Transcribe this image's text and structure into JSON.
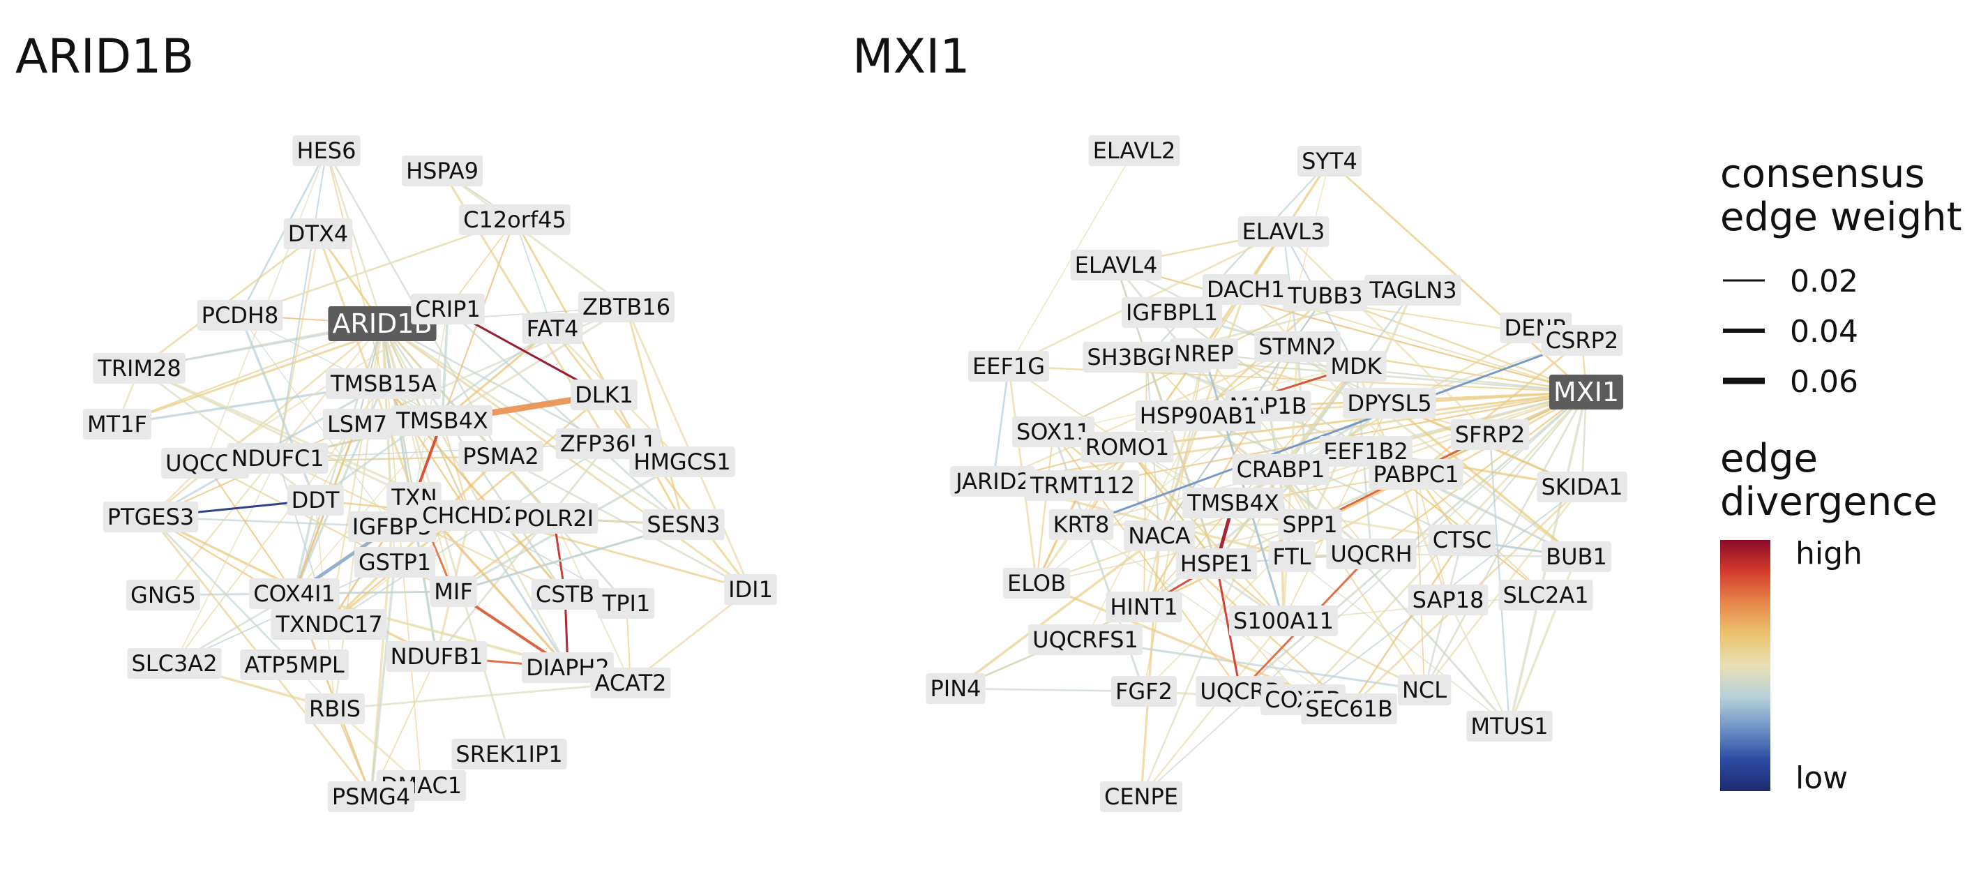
{
  "panels": [
    {
      "title": "ARID1B",
      "hub": "ARID1B",
      "hub_color": "#5c5c5c",
      "nodes": [
        "HES6",
        "HSPA9",
        "C12orf45",
        "DTX4",
        "PCDH8",
        "ARID1B",
        "CRIP1",
        "ZBTB16",
        "FAT4",
        "TRIM28",
        "TMSB15A",
        "DLK1",
        "MT1F",
        "LSM7",
        "TMSB4X",
        "ZFP36L1",
        "UQCC2",
        "NDUFC1",
        "PSMA2",
        "HMGCS1",
        "DDT",
        "TXN",
        "PTGES3",
        "IGFBP5",
        "CHCHD2",
        "POLR2I",
        "SESN3",
        "GSTP1",
        "GNG5",
        "COX4I1",
        "MIF",
        "CSTB",
        "TPI1",
        "IDI1",
        "TXNDC17",
        "SLC3A2",
        "ATP5MPL",
        "NDUFB1",
        "DIAPH2",
        "ACAT2",
        "RBIS",
        "SREK1IP1",
        "DMAC1",
        "PSMG4"
      ]
    },
    {
      "title": "MXI1",
      "hub": "MXI1",
      "hub_color": "#5c5c5c",
      "nodes": [
        "ELAVL2",
        "SYT4",
        "ELAVL3",
        "ELAVL4",
        "DACH1",
        "TUBB3",
        "TAGLN3",
        "IGFBPL1",
        "DENR",
        "CSRP2",
        "EEF1G",
        "SH3BGRL3",
        "NREP",
        "STMN2",
        "MDK",
        "MXI1",
        "MAP1B",
        "DPYSL5",
        "HSP90AB1",
        "SOX11",
        "ROMO1",
        "EEF1B2",
        "SFRP2",
        "CRABP1",
        "JARID2",
        "TRMT112",
        "PABPC1",
        "SKIDA1",
        "TMSB4X",
        "KRT8",
        "SPP1",
        "NACA",
        "CTSC",
        "UQCRH",
        "BUB1",
        "HSPE1",
        "FTL",
        "ELOB",
        "SLC2A1",
        "SAP18",
        "HINT1",
        "S100A11",
        "UQCRFS1",
        "PIN4",
        "FGF2",
        "UQCRB",
        "COX5B",
        "SEC61B",
        "NCL",
        "MTUS1",
        "CENPE"
      ]
    }
  ],
  "legend": {
    "width_title_line1": "consensus",
    "width_title_line2": "edge weight",
    "width_items": [
      {
        "label": "0.02",
        "value": 0.02
      },
      {
        "label": "0.04",
        "value": 0.04
      },
      {
        "label": "0.06",
        "value": 0.06
      }
    ],
    "color_title_line1": "edge",
    "color_title_line2": "divergence",
    "color_high_label": "high",
    "color_low_label": "low",
    "colormap": [
      "#1e2a6e",
      "#2b4ba3",
      "#6f93c7",
      "#b8d1d9",
      "#e8dfb4",
      "#ecc36f",
      "#e8864b",
      "#d23c2c",
      "#8b0a2a"
    ]
  },
  "style": {
    "node_box_color": "#e8e8e8",
    "edge_neutral_color": "#e3d39a"
  }
}
